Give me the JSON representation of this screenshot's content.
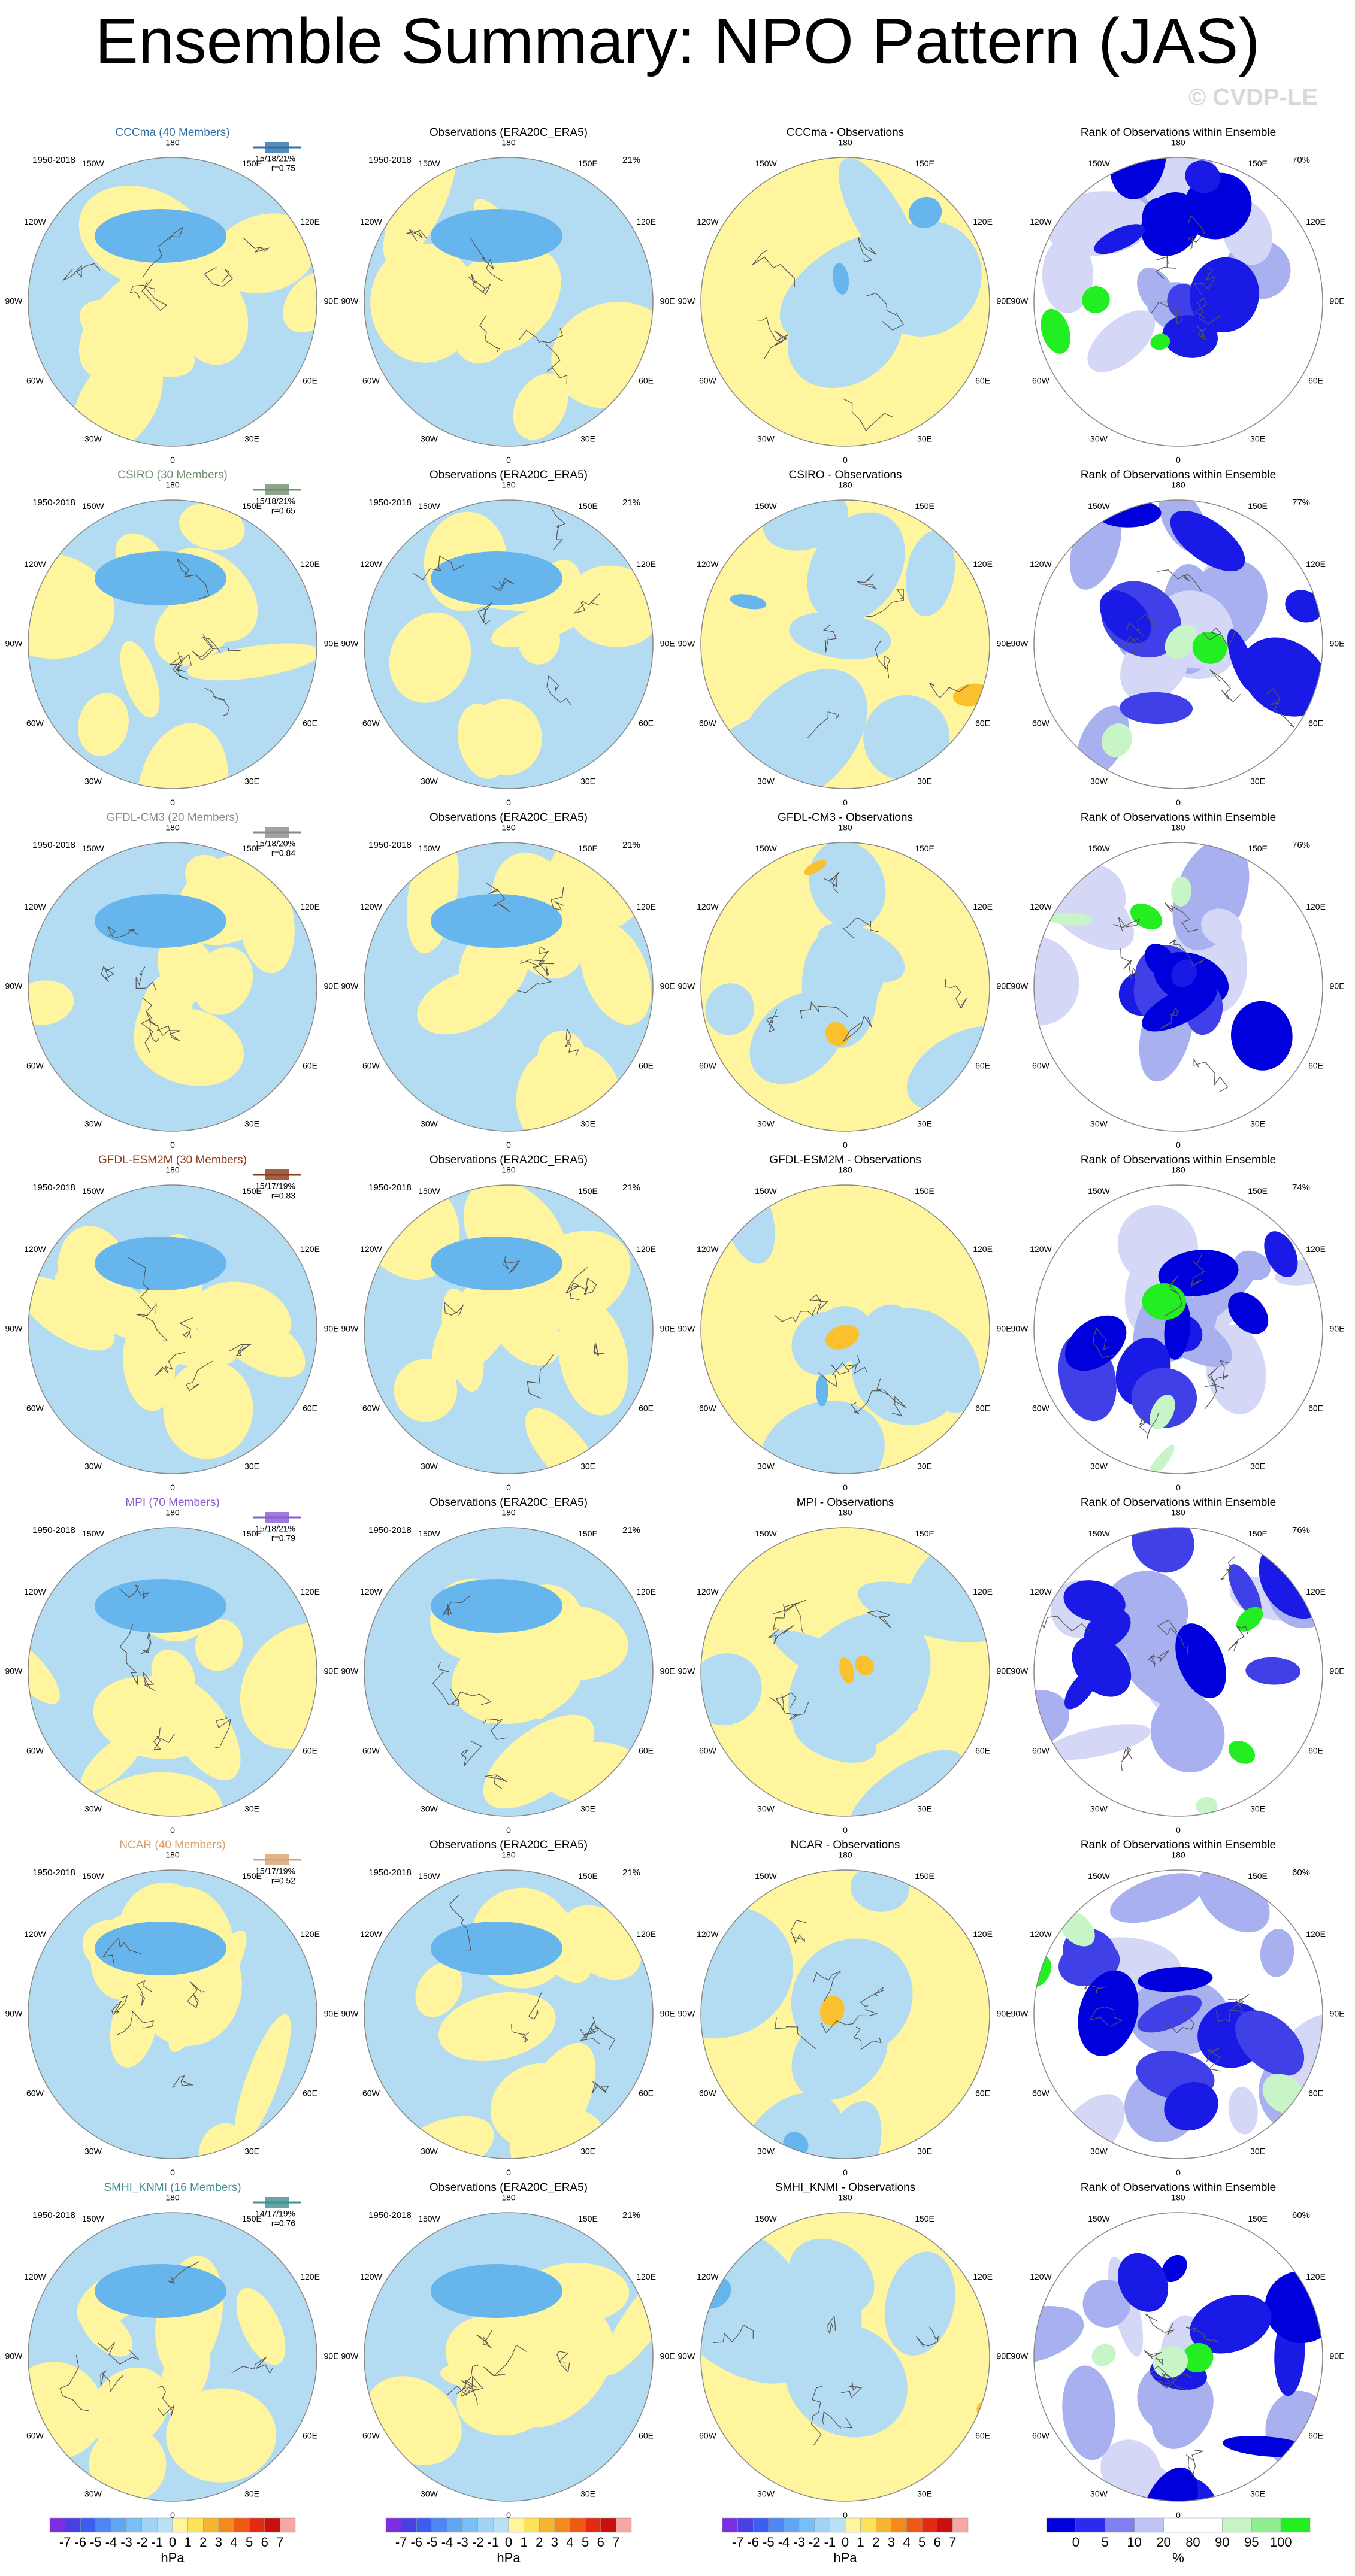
{
  "title": "Ensemble Summary: NPO Pattern (JAS)",
  "watermark": "© CVDP-LE",
  "period": "1950-2018",
  "lon_labels": [
    "180",
    "150E",
    "120E",
    "90E",
    "60E",
    "30E",
    "0",
    "30W",
    "60W",
    "90W",
    "120W",
    "150W"
  ],
  "observations": {
    "title": "Observations (ERA20C_ERA5)",
    "percent": "21%"
  },
  "rank_title": "Rank of Observations within Ensemble",
  "rows": [
    {
      "model": "CCCma (40 Members)",
      "color": "#2f6fa8",
      "stats": "15/18/21%",
      "r": "r=0.75",
      "difference_title": "CCCma - Observations",
      "rank_percent": "70%"
    },
    {
      "model": "CSIRO (30 Members)",
      "color": "#6f8f6f",
      "stats": "15/18/21%",
      "r": "r=0.65",
      "difference_title": "CSIRO - Observations",
      "rank_percent": "77%"
    },
    {
      "model": "GFDL-CM3 (20 Members)",
      "color": "#8a8a8a",
      "stats": "15/18/20%",
      "r": "r=0.84",
      "difference_title": "GFDL-CM3 - Observations",
      "rank_percent": "76%"
    },
    {
      "model": "GFDL-ESM2M (30 Members)",
      "color": "#8a3a16",
      "stats": "15/17/19%",
      "r": "r=0.83",
      "difference_title": "GFDL-ESM2M - Observations",
      "rank_percent": "74%"
    },
    {
      "model": "MPI (70 Members)",
      "color": "#8a5ad0",
      "stats": "15/18/21%",
      "r": "r=0.79",
      "difference_title": "MPI - Observations",
      "rank_percent": "76%"
    },
    {
      "model": "NCAR (40 Members)",
      "color": "#d8a070",
      "stats": "15/17/19%",
      "r": "r=0.52",
      "difference_title": "NCAR - Observations",
      "rank_percent": "60%"
    },
    {
      "model": "SMHI_KNMI (16 Members)",
      "color": "#3f8f8f",
      "stats": "14/17/19%",
      "r": "r=0.76",
      "difference_title": "SMHI_KNMI - Observations",
      "rank_percent": "60%"
    }
  ],
  "colorbars": [
    {
      "labels": [
        -7,
        -6,
        -5,
        -4,
        -3,
        -2,
        -1,
        0,
        1,
        2,
        3,
        4,
        5,
        6,
        7
      ],
      "unit": "hPa"
    },
    {
      "labels": [
        -7,
        -6,
        -5,
        -4,
        -3,
        -2,
        -1,
        0,
        1,
        2,
        3,
        4,
        5,
        6,
        7
      ],
      "unit": "hPa"
    },
    {
      "labels": [
        -7,
        -6,
        -5,
        -4,
        -3,
        -2,
        -1,
        0,
        1,
        2,
        3,
        4,
        5,
        6,
        7
      ],
      "unit": "hPa"
    },
    {
      "labels": [
        0,
        5,
        10,
        20,
        80,
        90,
        95,
        100
      ],
      "unit": "%"
    }
  ]
}
